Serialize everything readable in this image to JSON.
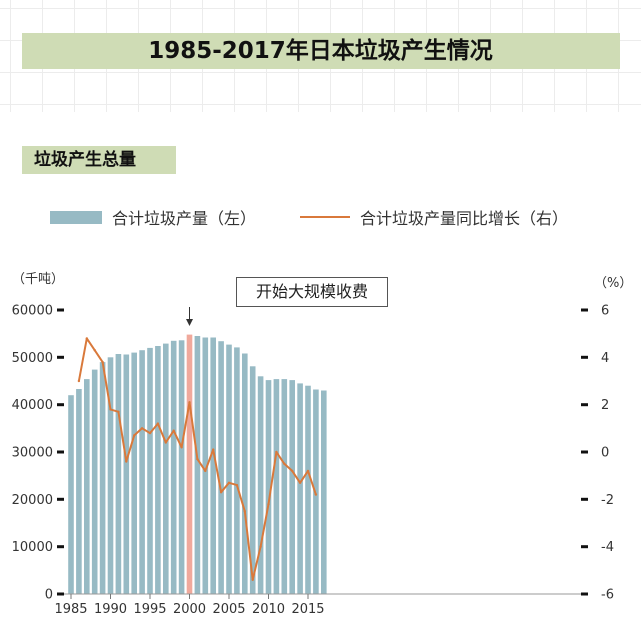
{
  "header": {
    "title": "1985-2017年日本垃圾产生情况",
    "section_label": "垃圾产生总量"
  },
  "legend": {
    "bar_label": "合计垃圾产量（左）",
    "line_label": "合计垃圾产量同比增长（右）"
  },
  "units": {
    "left": "（千吨）",
    "right": "（%）"
  },
  "annotation": {
    "text": "开始大规模收费",
    "year": 2000
  },
  "colors": {
    "bar": "#97bac4",
    "highlight_bar": "#f0a99c",
    "line": "#d9793b",
    "title_band": "#cfdcb5"
  },
  "chart_data": {
    "type": "bar",
    "title": "1985-2017年日本垃圾产生情况",
    "x_ticks": [
      1985,
      1990,
      1995,
      2000,
      2005,
      2010,
      2015
    ],
    "x_tick_labels": [
      "1985",
      "1990",
      "1995",
      "2000",
      "2005",
      "2010",
      "2015"
    ],
    "ylim_left": [
      0,
      60000
    ],
    "y_ticks_left": [
      "0",
      "10000",
      "20000",
      "30000",
      "40000",
      "50000",
      "60000"
    ],
    "ylim_right": [
      -6,
      6
    ],
    "y_ticks_right": [
      "-6",
      "-4",
      "-2",
      "0",
      "2",
      "4",
      "6"
    ],
    "series": [
      {
        "name": "合计垃圾产量（左）",
        "type": "bar",
        "axis": "left",
        "x": [
          1985,
          1986,
          1987,
          1988,
          1989,
          1990,
          1991,
          1992,
          1993,
          1994,
          1995,
          1996,
          1997,
          1998,
          1999,
          2000,
          2001,
          2002,
          2003,
          2004,
          2005,
          2006,
          2007,
          2008,
          2009,
          2010,
          2011,
          2012,
          2013,
          2014,
          2015,
          2016,
          2017
        ],
        "values": [
          42000,
          43300,
          45400,
          47400,
          49000,
          50000,
          50700,
          50600,
          51000,
          51500,
          52000,
          52400,
          52900,
          53500,
          53600,
          54800,
          54500,
          54200,
          54200,
          53400,
          52700,
          52100,
          50800,
          48100,
          46000,
          45200,
          45400,
          45400,
          45200,
          44500,
          44000,
          43200,
          43000
        ],
        "highlight_x": 2000
      },
      {
        "name": "合计垃圾产量同比增长（右）",
        "type": "line",
        "axis": "right",
        "x": [
          1986,
          1987,
          1988,
          1989,
          1990,
          1991,
          1992,
          1993,
          1994,
          1995,
          1996,
          1997,
          1998,
          1999,
          2000,
          2001,
          2002,
          2003,
          2004,
          2005,
          2006,
          2007,
          2008,
          2009,
          2010,
          2011,
          2012,
          2013,
          2014,
          2015,
          2016
        ],
        "values": [
          3.0,
          4.8,
          4.3,
          3.8,
          1.8,
          1.7,
          -0.4,
          0.7,
          1.0,
          0.8,
          1.2,
          0.4,
          0.9,
          0.2,
          2.1,
          -0.3,
          -0.8,
          0.1,
          -1.7,
          -1.3,
          -1.4,
          -2.5,
          -5.4,
          -4.0,
          -2.2,
          0.0,
          -0.5,
          -0.8,
          -1.3,
          -0.8,
          -1.8
        ]
      }
    ]
  }
}
